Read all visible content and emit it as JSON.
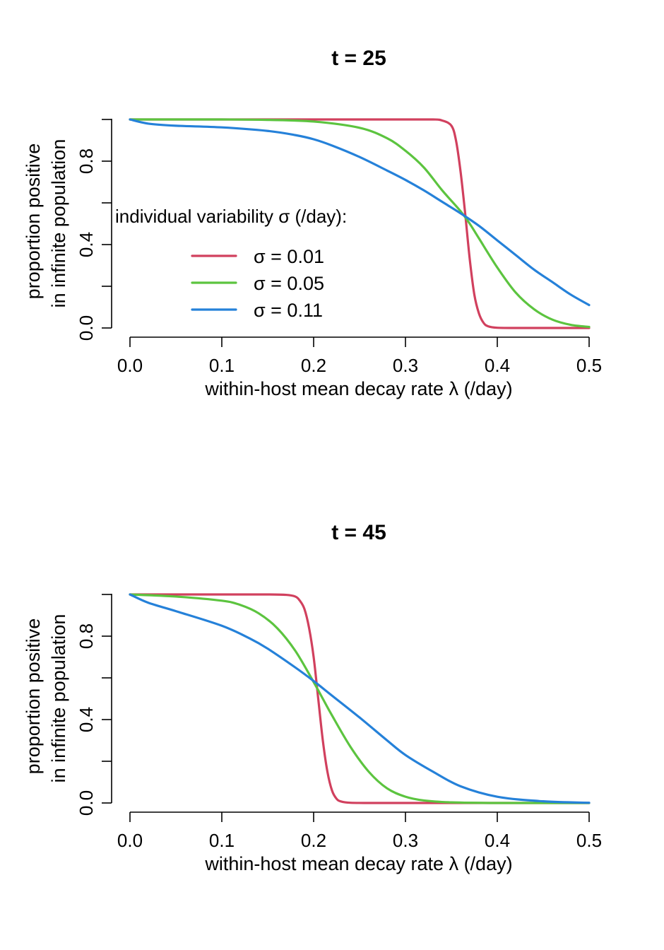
{
  "colors": {
    "series_0.01": "#D1405E",
    "series_0.05": "#5CC43F",
    "series_0.11": "#2581D9"
  },
  "chart_data": [
    {
      "type": "line",
      "title": "t = 25",
      "xlabel": "within-host mean decay rate λ (/day)",
      "ylabel": [
        "proportion positive",
        "in infinite population"
      ],
      "xlim": [
        0,
        0.5
      ],
      "ylim": [
        0,
        1
      ],
      "x_ticks": [
        "0.0",
        "0.1",
        "0.2",
        "0.3",
        "0.4",
        "0.5"
      ],
      "y_ticks": [
        0,
        0.2,
        0.4,
        0.6,
        0.8,
        1.0
      ],
      "y_tick_labels": [
        "0.0",
        "",
        "0.4",
        "",
        "0.8",
        ""
      ],
      "legend": {
        "title": "individual variability σ (/day):",
        "placement": "center-left",
        "entries": [
          "σ = 0.01",
          "σ = 0.05",
          "σ = 0.11"
        ]
      },
      "series": [
        {
          "sigma": 0.01,
          "color": "#D1405E",
          "x": [
            0,
            0.05,
            0.1,
            0.15,
            0.2,
            0.25,
            0.3,
            0.33,
            0.34,
            0.35,
            0.355,
            0.36,
            0.365,
            0.37,
            0.375,
            0.38,
            0.385,
            0.39,
            0.4,
            0.42,
            0.45,
            0.5
          ],
          "y": [
            1,
            1,
            1,
            1,
            1,
            1,
            1,
            1,
            0.995,
            0.97,
            0.9,
            0.75,
            0.55,
            0.33,
            0.16,
            0.07,
            0.025,
            0.008,
            0.001,
            0,
            0,
            0
          ]
        },
        {
          "sigma": 0.05,
          "color": "#5CC43F",
          "x": [
            0,
            0.05,
            0.1,
            0.15,
            0.2,
            0.25,
            0.28,
            0.3,
            0.32,
            0.34,
            0.36,
            0.37,
            0.38,
            0.4,
            0.42,
            0.44,
            0.46,
            0.48,
            0.5
          ],
          "y": [
            1,
            1,
            1,
            0.998,
            0.99,
            0.96,
            0.91,
            0.85,
            0.77,
            0.66,
            0.56,
            0.5,
            0.43,
            0.29,
            0.17,
            0.09,
            0.04,
            0.015,
            0.005
          ]
        },
        {
          "sigma": 0.11,
          "color": "#2581D9",
          "x": [
            0,
            0.02,
            0.05,
            0.1,
            0.15,
            0.18,
            0.2,
            0.22,
            0.25,
            0.28,
            0.3,
            0.32,
            0.34,
            0.36,
            0.38,
            0.4,
            0.42,
            0.44,
            0.46,
            0.48,
            0.5
          ],
          "y": [
            1,
            0.98,
            0.97,
            0.962,
            0.945,
            0.925,
            0.905,
            0.875,
            0.82,
            0.755,
            0.71,
            0.66,
            0.605,
            0.55,
            0.49,
            0.42,
            0.35,
            0.28,
            0.22,
            0.16,
            0.11
          ]
        }
      ]
    },
    {
      "type": "line",
      "title": "t = 45",
      "xlabel": "within-host mean decay rate λ (/day)",
      "ylabel": [
        "proportion positive",
        "in infinite population"
      ],
      "xlim": [
        0,
        0.5
      ],
      "ylim": [
        0,
        1
      ],
      "x_ticks": [
        "0.0",
        "0.1",
        "0.2",
        "0.3",
        "0.4",
        "0.5"
      ],
      "y_ticks": [
        0,
        0.2,
        0.4,
        0.6,
        0.8,
        1.0
      ],
      "y_tick_labels": [
        "0.0",
        "",
        "0.4",
        "",
        "0.8",
        ""
      ],
      "series": [
        {
          "sigma": 0.01,
          "color": "#D1405E",
          "x": [
            0,
            0.05,
            0.1,
            0.15,
            0.17,
            0.18,
            0.185,
            0.19,
            0.195,
            0.2,
            0.205,
            0.21,
            0.215,
            0.22,
            0.225,
            0.23,
            0.24,
            0.26,
            0.3,
            0.4,
            0.5
          ],
          "y": [
            1,
            1,
            1,
            1,
            0.998,
            0.99,
            0.97,
            0.93,
            0.84,
            0.7,
            0.5,
            0.3,
            0.15,
            0.06,
            0.02,
            0.007,
            0.001,
            0,
            0,
            0,
            0
          ],
          "notes": ""
        },
        {
          "sigma": 0.05,
          "color": "#5CC43F",
          "x": [
            0,
            0.05,
            0.1,
            0.12,
            0.14,
            0.16,
            0.18,
            0.2,
            0.21,
            0.22,
            0.24,
            0.26,
            0.28,
            0.3,
            0.32,
            0.35,
            0.4,
            0.5
          ],
          "y": [
            1,
            0.99,
            0.97,
            0.95,
            0.91,
            0.84,
            0.73,
            0.58,
            0.5,
            0.42,
            0.27,
            0.15,
            0.07,
            0.03,
            0.012,
            0.003,
            0,
            0
          ]
        },
        {
          "sigma": 0.11,
          "color": "#2581D9",
          "x": [
            0,
            0.02,
            0.05,
            0.1,
            0.13,
            0.15,
            0.18,
            0.2,
            0.22,
            0.25,
            0.28,
            0.3,
            0.33,
            0.36,
            0.4,
            0.45,
            0.5
          ],
          "y": [
            1,
            0.96,
            0.92,
            0.85,
            0.79,
            0.74,
            0.65,
            0.585,
            0.515,
            0.41,
            0.3,
            0.23,
            0.15,
            0.08,
            0.03,
            0.008,
            0.001
          ]
        }
      ]
    }
  ]
}
